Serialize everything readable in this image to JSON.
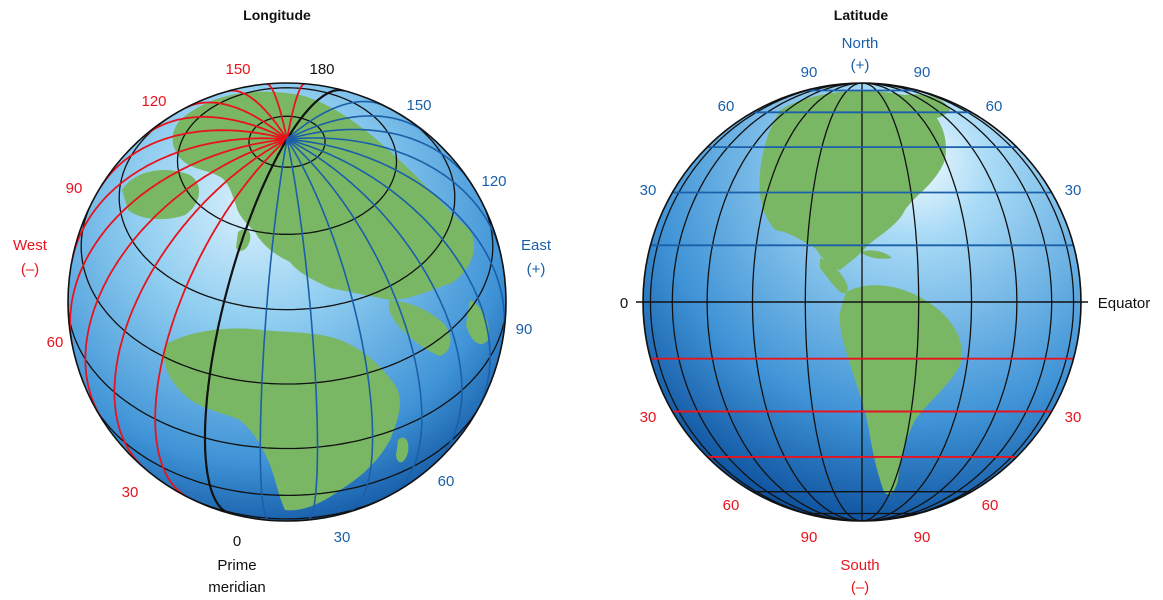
{
  "colors": {
    "west_red": "#e8131d",
    "east_blue": "#1b5fa8",
    "text_black": "#111111",
    "ocean_light": "#9fd4f2",
    "ocean_dark": "#0c4f9c",
    "land_green": "#79b765"
  },
  "longitude": {
    "title": "Longitude",
    "west_ticks": [
      "150",
      "120",
      "90",
      "60",
      "30"
    ],
    "top_tick": "180",
    "east_ticks": [
      "150",
      "120",
      "90",
      "60",
      "30"
    ],
    "west_label": "West",
    "west_sign": "(–)",
    "east_label": "East",
    "east_sign": "(+)",
    "zero_tick": "0",
    "prime_line1": "Prime",
    "prime_line2": "meridian"
  },
  "latitude": {
    "title": "Latitude",
    "north_label": "North",
    "north_sign": "(+)",
    "north_ticks_left": [
      "90",
      "60",
      "30"
    ],
    "north_ticks_right": [
      "90",
      "60",
      "30"
    ],
    "zero_tick": "0",
    "equator_label": "Equator",
    "south_ticks_left": [
      "30",
      "60",
      "90"
    ],
    "south_ticks_right": [
      "30",
      "60",
      "90"
    ],
    "south_label": "South",
    "south_sign": "(–)"
  }
}
